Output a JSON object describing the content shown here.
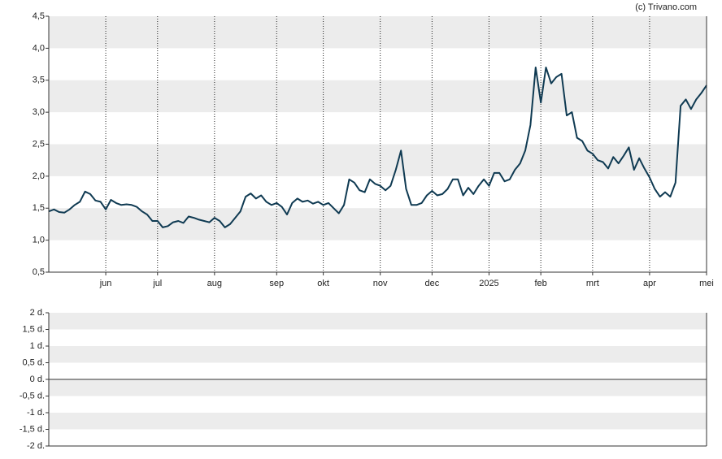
{
  "source": "(c) Trivano.com",
  "chart_data": [
    {
      "type": "line",
      "color": "#0f3a52",
      "categories": [
        null,
        null,
        null,
        null,
        null,
        null,
        null,
        null,
        null,
        null,
        null,
        "jun",
        null,
        null,
        null,
        null,
        null,
        null,
        null,
        null,
        null,
        "jul",
        null,
        null,
        null,
        null,
        null,
        null,
        null,
        null,
        null,
        null,
        "aug",
        null,
        null,
        null,
        null,
        null,
        null,
        null,
        null,
        null,
        null,
        null,
        "sep",
        null,
        null,
        null,
        null,
        null,
        null,
        null,
        null,
        "okt",
        null,
        null,
        null,
        null,
        null,
        null,
        null,
        null,
        null,
        null,
        "nov",
        null,
        null,
        null,
        null,
        null,
        null,
        null,
        null,
        null,
        "dec",
        null,
        null,
        null,
        null,
        null,
        null,
        null,
        null,
        null,
        null,
        "2025",
        null,
        null,
        null,
        null,
        null,
        null,
        null,
        null,
        null,
        "feb",
        null,
        null,
        null,
        null,
        null,
        null,
        null,
        null,
        null,
        "mrt",
        null,
        null,
        null,
        null,
        null,
        null,
        null,
        null,
        null,
        null,
        "apr",
        null,
        null,
        null,
        null,
        null,
        null,
        null,
        null,
        null,
        null,
        "mei"
      ],
      "values": [
        1.45,
        1.48,
        1.44,
        1.43,
        1.48,
        1.55,
        1.6,
        1.76,
        1.72,
        1.62,
        1.6,
        1.48,
        1.63,
        1.58,
        1.55,
        1.56,
        1.55,
        1.52,
        1.45,
        1.4,
        1.3,
        1.3,
        1.2,
        1.22,
        1.28,
        1.3,
        1.27,
        1.37,
        1.35,
        1.32,
        1.3,
        1.28,
        1.35,
        1.3,
        1.2,
        1.25,
        1.35,
        1.45,
        1.68,
        1.73,
        1.65,
        1.7,
        1.6,
        1.55,
        1.58,
        1.52,
        1.4,
        1.58,
        1.65,
        1.6,
        1.62,
        1.57,
        1.6,
        1.55,
        1.58,
        1.5,
        1.42,
        1.55,
        1.95,
        1.9,
        1.78,
        1.75,
        1.95,
        1.88,
        1.85,
        1.78,
        1.85,
        2.1,
        2.4,
        1.8,
        1.55,
        1.55,
        1.58,
        1.7,
        1.77,
        1.7,
        1.72,
        1.8,
        1.95,
        1.95,
        1.7,
        1.82,
        1.72,
        1.85,
        1.95,
        1.85,
        2.05,
        2.05,
        1.92,
        1.95,
        2.1,
        2.2,
        2.4,
        2.8,
        3.7,
        3.15,
        3.7,
        3.45,
        3.55,
        3.6,
        2.95,
        3.0,
        2.6,
        2.55,
        2.4,
        2.35,
        2.25,
        2.22,
        2.12,
        2.3,
        2.2,
        2.32,
        2.45,
        2.1,
        2.28,
        2.12,
        1.98,
        1.8,
        1.68,
        1.75,
        1.68,
        1.9,
        3.1,
        3.2,
        3.05,
        3.2,
        3.3,
        3.42
      ],
      "ylim": [
        0.5,
        4.5
      ],
      "yticks": [
        {
          "value": 0.5,
          "label": "0,5"
        },
        {
          "value": 1,
          "label": "1,0"
        },
        {
          "value": 1.5,
          "label": "1,5"
        },
        {
          "value": 2,
          "label": "2,0"
        },
        {
          "value": 2.5,
          "label": "2,5"
        },
        {
          "value": 3,
          "label": "3,0"
        },
        {
          "value": 3.5,
          "label": "3,5"
        },
        {
          "value": 4,
          "label": "4,0"
        },
        {
          "value": 4.5,
          "label": "4,5"
        }
      ],
      "grid": true
    },
    {
      "type": "bar",
      "ylim": [
        -2,
        2
      ],
      "yticks": [
        {
          "value": -2,
          "label": "-2 d."
        },
        {
          "value": -1.5,
          "label": "-1,5 d."
        },
        {
          "value": -1,
          "label": "-1 d."
        },
        {
          "value": -0.5,
          "label": "-0,5 d."
        },
        {
          "value": 0,
          "label": "0 d."
        },
        {
          "value": 0.5,
          "label": "0,5 d."
        },
        {
          "value": 1,
          "label": "1 d."
        },
        {
          "value": 1.5,
          "label": "1,5 d."
        },
        {
          "value": 2,
          "label": "2 d."
        }
      ],
      "grid": true
    }
  ]
}
